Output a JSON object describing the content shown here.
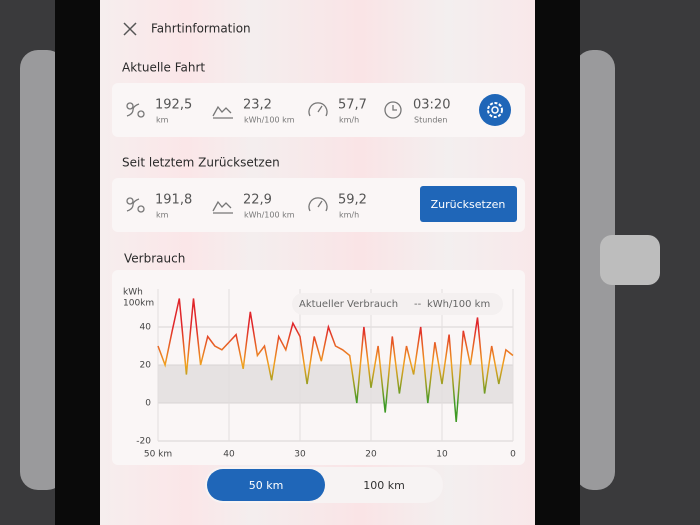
{
  "header": {
    "title": "Fahrtinformation"
  },
  "current_trip": {
    "title": "Aktuelle Fahrt",
    "stats": [
      {
        "value": "192,5",
        "unit": "km"
      },
      {
        "value": "23,2",
        "unit": "kWh/100 km"
      },
      {
        "value": "57,7",
        "unit": "km/h"
      },
      {
        "value": "03:20",
        "unit": "Stunden"
      }
    ]
  },
  "since_reset": {
    "title": "Seit letztem Zurücksetzen",
    "stats": [
      {
        "value": "191,8",
        "unit": "km"
      },
      {
        "value": "22,9",
        "unit": "kWh/100 km"
      },
      {
        "value": "59,2",
        "unit": "km/h"
      }
    ],
    "button": "Zurücksetzen"
  },
  "consumption": {
    "title": "Verbrauch",
    "chart_data": {
      "type": "line",
      "y_label": [
        "kWh",
        "100km"
      ],
      "tooltip": {
        "label": "Aktueller Verbrauch",
        "value": "--",
        "unit": "kWh/100 km"
      },
      "x": [
        50,
        49,
        48,
        47,
        46,
        45,
        44,
        43,
        42,
        41,
        40,
        39,
        38,
        37,
        36,
        35,
        34,
        33,
        32,
        31,
        30,
        29,
        28,
        27,
        26,
        25,
        24,
        23,
        22,
        21,
        20,
        19,
        18,
        17,
        16,
        15,
        14,
        13,
        12,
        11,
        10,
        9,
        8,
        7,
        6,
        5,
        4,
        3,
        2,
        1,
        0
      ],
      "values": [
        30,
        20,
        38,
        55,
        15,
        55,
        20,
        35,
        30,
        28,
        32,
        36,
        18,
        48,
        25,
        30,
        12,
        35,
        28,
        42,
        35,
        10,
        35,
        22,
        40,
        30,
        28,
        25,
        0,
        40,
        8,
        30,
        -5,
        35,
        5,
        30,
        15,
        40,
        0,
        32,
        10,
        36,
        -10,
        38,
        20,
        45,
        5,
        30,
        10,
        28,
        25
      ],
      "colors": [
        "#e0262a",
        "#f0a21f",
        "#3f9a25"
      ],
      "xlim": [
        50,
        0
      ],
      "ylim": [
        -20,
        60
      ],
      "xticks": [
        {
          "value": 50,
          "label": "50 km"
        },
        40,
        30,
        20,
        10,
        0
      ],
      "yticks": [
        40,
        20,
        0,
        -20
      ],
      "grid": true
    },
    "toggle": {
      "options": [
        "50 km",
        "100 km"
      ],
      "selected": 0
    }
  }
}
